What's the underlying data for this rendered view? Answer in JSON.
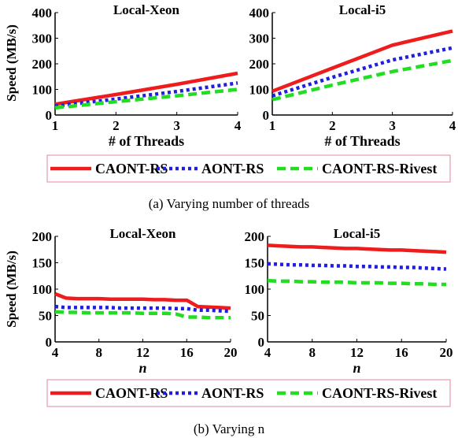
{
  "colors": {
    "CAONT-RS": "#ee1c1c",
    "AONT-RS": "#1f1fdd",
    "CAONT-RS-Rivest": "#22dd22",
    "legend_border": "#e8869a",
    "axis": "#000000"
  },
  "figures": [
    {
      "caption": "(a)  Varying number of threads",
      "legend": [
        "CAONT-RS",
        "AONT-RS",
        "CAONT-RS-Rivest"
      ]
    },
    {
      "caption": "(b)  Varying n",
      "legend": [
        "CAONT-RS",
        "AONT-RS",
        "CAONT-RS-Rivest"
      ]
    }
  ],
  "chart_data": [
    {
      "type": "line",
      "title": "Local-Xeon",
      "xlabel": "# of Threads",
      "ylabel": "Speed (MB/s)",
      "xlim": [
        1,
        4
      ],
      "ylim": [
        0,
        400
      ],
      "xticks": [
        1,
        2,
        3,
        4
      ],
      "yticks": [
        0,
        100,
        200,
        300,
        400
      ],
      "x": [
        1,
        2,
        3,
        4
      ],
      "series": [
        {
          "name": "CAONT-RS",
          "values": [
            42,
            80,
            120,
            163
          ]
        },
        {
          "name": "AONT-RS",
          "values": [
            35,
            62,
            92,
            125
          ]
        },
        {
          "name": "CAONT-RS-Rivest",
          "values": [
            28,
            52,
            75,
            100
          ]
        }
      ]
    },
    {
      "type": "line",
      "title": "Local-i5",
      "xlabel": "# of Threads",
      "ylabel": "",
      "xlim": [
        1,
        4
      ],
      "ylim": [
        0,
        400
      ],
      "xticks": [
        1,
        2,
        3,
        4
      ],
      "yticks": [
        0,
        100,
        200,
        300,
        400
      ],
      "x": [
        1,
        2,
        3,
        4
      ],
      "series": [
        {
          "name": "CAONT-RS",
          "values": [
            93,
            183,
            273,
            328
          ]
        },
        {
          "name": "AONT-RS",
          "values": [
            75,
            147,
            215,
            262
          ]
        },
        {
          "name": "CAONT-RS-Rivest",
          "values": [
            60,
            117,
            170,
            213
          ]
        }
      ]
    },
    {
      "type": "line",
      "title": "Local-Xeon",
      "xlabel": "n",
      "ylabel": "Speed (MB/s)",
      "xlim": [
        4,
        20
      ],
      "ylim": [
        0,
        200
      ],
      "xticks": [
        4,
        8,
        12,
        16,
        20
      ],
      "yticks": [
        0,
        50,
        100,
        150,
        200
      ],
      "x": [
        4,
        5,
        6,
        7,
        8,
        9,
        10,
        11,
        12,
        13,
        14,
        15,
        16,
        17,
        18,
        19,
        20
      ],
      "series": [
        {
          "name": "CAONT-RS",
          "values": [
            91,
            83,
            82,
            82,
            82,
            81,
            81,
            81,
            81,
            80,
            80,
            79,
            79,
            67,
            66,
            65,
            64
          ]
        },
        {
          "name": "AONT-RS",
          "values": [
            67,
            65,
            65,
            65,
            65,
            65,
            64,
            64,
            64,
            64,
            64,
            63,
            63,
            60,
            60,
            59,
            58
          ]
        },
        {
          "name": "CAONT-RS-Rivest",
          "values": [
            57,
            56,
            56,
            55,
            55,
            55,
            55,
            55,
            54,
            54,
            54,
            53,
            47,
            47,
            46,
            46,
            46
          ]
        }
      ]
    },
    {
      "type": "line",
      "title": "Local-i5",
      "xlabel": "n",
      "ylabel": "",
      "xlim": [
        4,
        20
      ],
      "ylim": [
        0,
        200
      ],
      "xticks": [
        4,
        8,
        12,
        16,
        20
      ],
      "yticks": [
        0,
        50,
        100,
        150,
        200
      ],
      "x": [
        4,
        5,
        6,
        7,
        8,
        9,
        10,
        11,
        12,
        13,
        14,
        15,
        16,
        17,
        18,
        19,
        20
      ],
      "series": [
        {
          "name": "CAONT-RS",
          "values": [
            183,
            182,
            181,
            180,
            180,
            179,
            178,
            177,
            177,
            176,
            175,
            174,
            174,
            173,
            172,
            171,
            170
          ]
        },
        {
          "name": "AONT-RS",
          "values": [
            148,
            147,
            146,
            146,
            145,
            145,
            144,
            144,
            143,
            143,
            142,
            142,
            141,
            141,
            140,
            139,
            138
          ]
        },
        {
          "name": "CAONT-RS-Rivest",
          "values": [
            116,
            115,
            115,
            114,
            114,
            113,
            113,
            113,
            112,
            112,
            112,
            111,
            111,
            110,
            110,
            109,
            109
          ]
        }
      ]
    }
  ]
}
